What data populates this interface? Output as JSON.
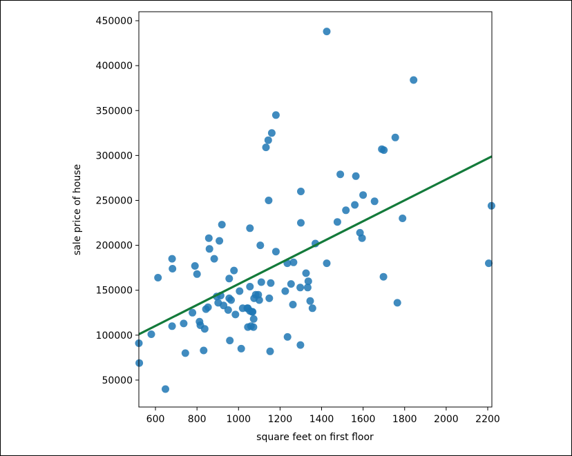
{
  "chart_data": {
    "type": "scatter",
    "title": "",
    "xlabel": "square feet on first floor",
    "ylabel": "sale price of house",
    "xlim": [
      520,
      2220
    ],
    "ylim": [
      20000,
      460000
    ],
    "x_ticks": [
      600,
      800,
      1000,
      1200,
      1400,
      1600,
      1800,
      2000,
      2200
    ],
    "y_ticks": [
      50000,
      100000,
      150000,
      200000,
      250000,
      300000,
      350000,
      400000,
      450000
    ],
    "grid": false,
    "legend": "none",
    "point_color": "#1f77b4",
    "line_color": "#137a3a",
    "regression_line": {
      "x": [
        520,
        2220
      ],
      "y": [
        101000,
        299000
      ]
    },
    "points": {
      "x": [
        1425,
        1843,
        1180,
        1160,
        1143,
        1132,
        1755,
        1700,
        1690,
        1490,
        1565,
        1600,
        1145,
        1655,
        1560,
        1517,
        1300,
        1300,
        1476,
        2218,
        1055,
        920,
        857,
        908,
        1585,
        1595,
        1790,
        1370,
        1105,
        1180,
        860,
        883,
        680,
        790,
        1235,
        1425,
        1265,
        682,
        800,
        978,
        1325,
        1698,
        955,
        612,
        1110,
        1155,
        1055,
        1253,
        1297,
        1333,
        1005,
        1083,
        1225,
        1095,
        895,
        914,
        1345,
        1765,
        1336,
        955,
        1148,
        1100,
        1075,
        1262,
        902,
        964,
        853,
        1356,
        1042,
        1045,
        1020,
        928,
        1055,
        1065,
        1068,
        778,
        843,
        950,
        985,
        1073,
        736,
        812,
        520,
        816,
        1072,
        680,
        1045,
        1060,
        580,
        837,
        1236,
        958,
        1298,
        1013,
        832,
        1152,
        744,
        522,
        648,
        2205
      ],
      "y": [
        438000,
        384000,
        345000,
        325000,
        317000,
        309000,
        320000,
        306000,
        307000,
        279000,
        277000,
        256000,
        250000,
        249000,
        245000,
        239000,
        260000,
        225000,
        226000,
        244000,
        219000,
        223000,
        208000,
        205000,
        214000,
        208000,
        230000,
        202000,
        200000,
        193000,
        196000,
        185000,
        185000,
        177000,
        180000,
        180000,
        181000,
        174000,
        168000,
        172000,
        169000,
        165000,
        163000,
        164000,
        159000,
        158000,
        154000,
        157000,
        153000,
        153000,
        149000,
        145000,
        149000,
        145000,
        143000,
        144000,
        138000,
        136000,
        160000,
        141000,
        141000,
        139000,
        141000,
        134000,
        136000,
        139000,
        131000,
        130000,
        130000,
        130000,
        130000,
        133000,
        127000,
        126000,
        126000,
        125000,
        129000,
        128000,
        123000,
        118000,
        113000,
        115000,
        91000,
        111000,
        109000,
        110000,
        109000,
        110000,
        101000,
        107000,
        98000,
        94000,
        89000,
        85000,
        83000,
        82000,
        80000,
        69000,
        40000,
        180000
      ]
    }
  }
}
